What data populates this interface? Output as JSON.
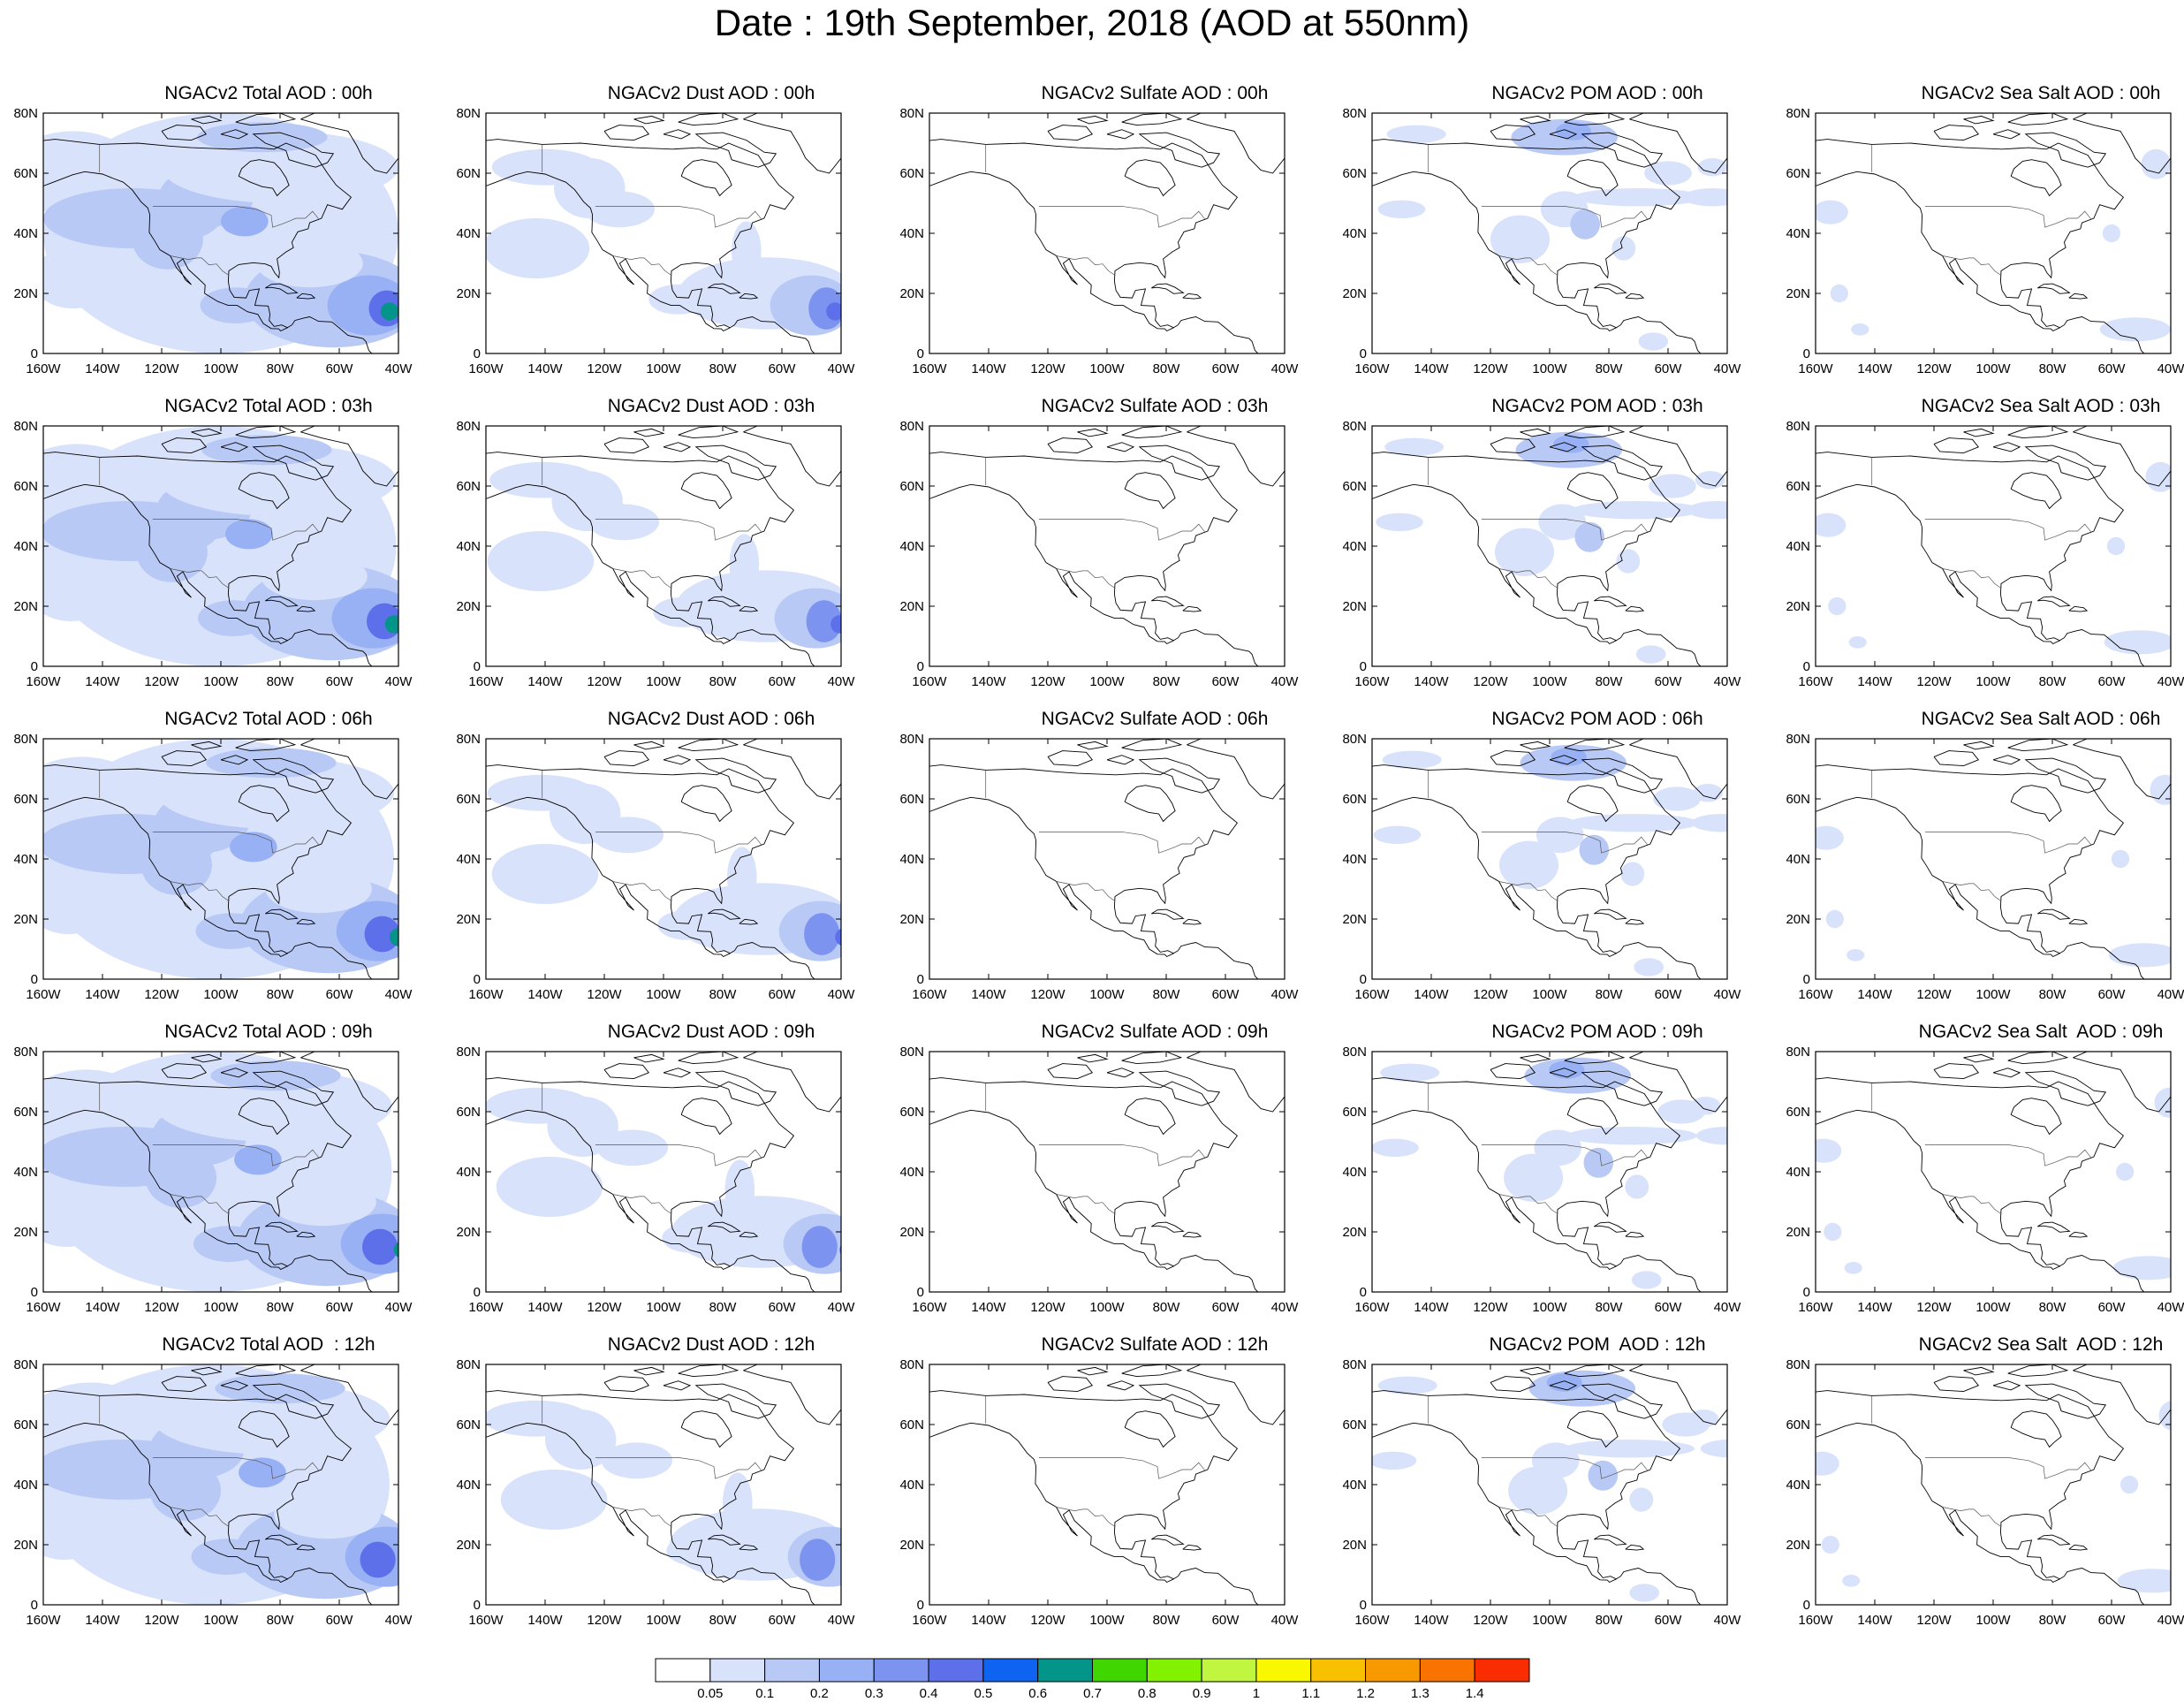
{
  "title": "Date : 19th September, 2018 (AOD at 550nm)",
  "panels": [
    [
      "NGACv2 Total AOD : 00h",
      "NGACv2 Dust AOD : 00h",
      "NGACv2 Sulfate AOD : 00h",
      "NGACv2 POM AOD : 00h",
      "NGACv2 Sea Salt AOD : 00h"
    ],
    [
      "NGACv2 Total AOD : 03h",
      "NGACv2 Dust AOD : 03h",
      "NGACv2 Sulfate AOD : 03h",
      "NGACv2 POM AOD : 03h",
      "NGACv2 Sea Salt AOD : 03h"
    ],
    [
      "NGACv2 Total AOD : 06h",
      "NGACv2 Dust AOD : 06h",
      "NGACv2 Sulfate AOD : 06h",
      "NGACv2 POM AOD : 06h",
      "NGACv2 Sea Salt AOD : 06h"
    ],
    [
      "NGACv2 Total AOD : 09h",
      "NGACv2 Dust AOD : 09h",
      "NGACv2 Sulfate AOD : 09h",
      "NGACv2 POM AOD : 09h",
      "NGACv2 Sea Salt  AOD : 09h"
    ],
    [
      "NGACv2 Total AOD  : 12h",
      "NGACv2 Dust AOD : 12h",
      "NGACv2 Sulfate AOD : 12h",
      "NGACv2 POM  AOD : 12h",
      "NGACv2 Sea Salt  AOD : 12h"
    ]
  ],
  "map": {
    "lat_ticks": [
      "0",
      "20N",
      "40N",
      "60N",
      "80N"
    ],
    "lon_ticks": [
      "160W",
      "140W",
      "120W",
      "100W",
      "80W",
      "60W",
      "40W"
    ],
    "lon_range": [
      -160,
      -40
    ],
    "lat_range": [
      0,
      80
    ]
  },
  "colorbar": {
    "levels": [
      "0.05",
      "0.1",
      "0.2",
      "0.3",
      "0.4",
      "0.5",
      "0.6",
      "0.7",
      "0.8",
      "0.9",
      "1",
      "1.1",
      "1.2",
      "1.3",
      "1.4"
    ],
    "colors": [
      "#ffffff",
      "#d9e2fb",
      "#b9c9f6",
      "#98b0f4",
      "#7c93ef",
      "#5e6fea",
      "#0e63f0",
      "#039589",
      "#40d600",
      "#83f200",
      "#c0f540",
      "#f9f800",
      "#f9c000",
      "#f99900",
      "#f97300",
      "#f92d00"
    ]
  }
}
